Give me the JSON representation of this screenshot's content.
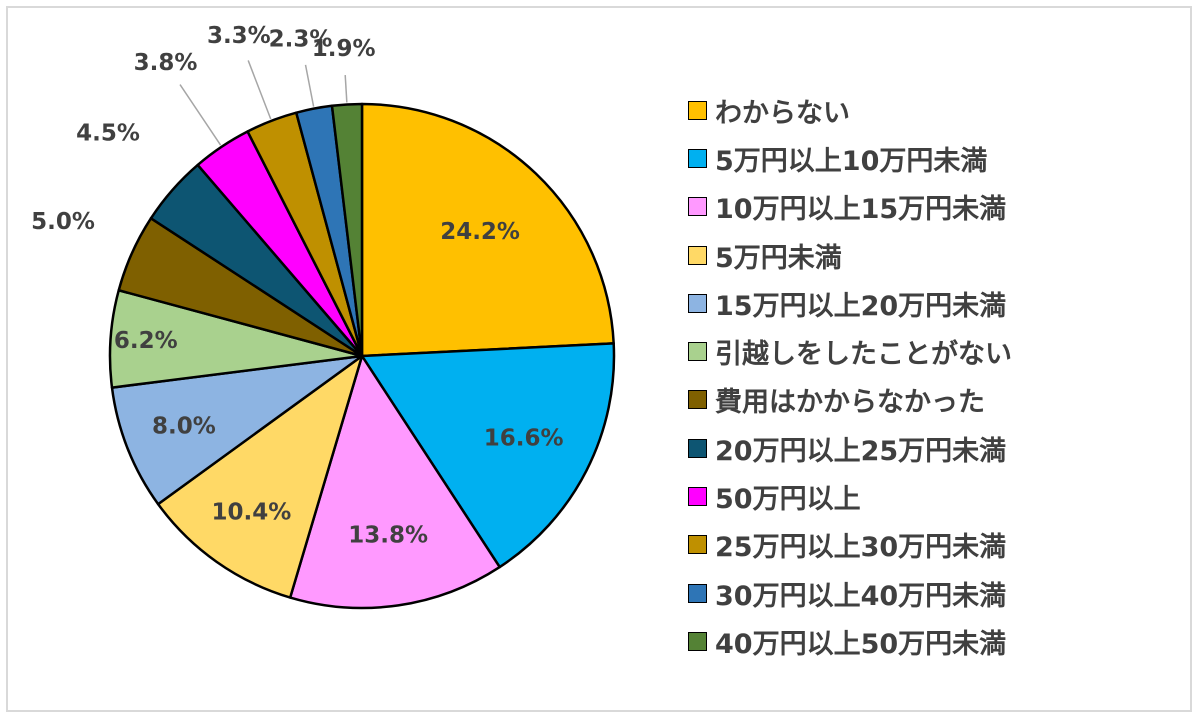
{
  "chart_data": {
    "type": "pie",
    "series": [
      {
        "label": "わからない",
        "value": 24.2,
        "display": "24.2%",
        "color": "#ffc000"
      },
      {
        "label": "5万円以上10万円未満",
        "value": 16.6,
        "display": "16.6%",
        "color": "#00b0f0"
      },
      {
        "label": "10万円以上15万円未満",
        "value": 13.8,
        "display": "13.8%",
        "color": "#ff99ff"
      },
      {
        "label": "5万円未満",
        "value": 10.4,
        "display": "10.4%",
        "color": "#ffd966"
      },
      {
        "label": "15万円以上20万円未満",
        "value": 8.0,
        "display": "8.0%",
        "color": "#8db4e2"
      },
      {
        "label": "引越しをしたことがない",
        "value": 6.2,
        "display": "6.2%",
        "color": "#a9d18e"
      },
      {
        "label": "費用はかからなかった",
        "value": 5.0,
        "display": "5.0%",
        "color": "#7f6000"
      },
      {
        "label": "20万円以上25万円未満",
        "value": 4.5,
        "display": "4.5%",
        "color": "#0d5572"
      },
      {
        "label": "50万円以上",
        "value": 3.8,
        "display": "3.8%",
        "color": "#ff00ff"
      },
      {
        "label": "25万円以上30万円未満",
        "value": 3.3,
        "display": "3.3%",
        "color": "#bf9000"
      },
      {
        "label": "30万円以上40万円未満",
        "value": 2.3,
        "display": "2.3%",
        "color": "#2e75b6"
      },
      {
        "label": "40万円以上50万円未満",
        "value": 1.9,
        "display": "1.9%",
        "color": "#548235"
      }
    ],
    "title": "",
    "legend_position": "right",
    "start_angle": "top",
    "direction": "clockwise"
  }
}
